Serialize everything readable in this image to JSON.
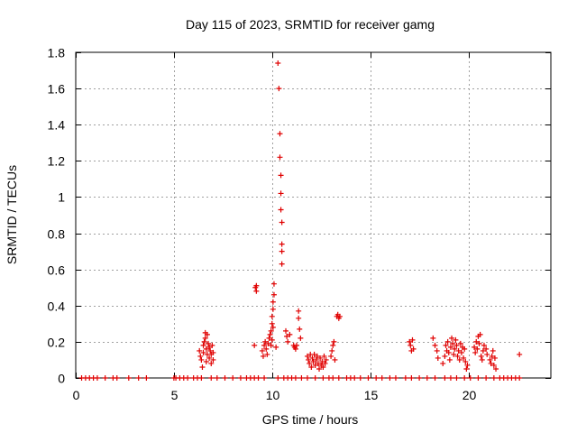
{
  "chart_data": {
    "type": "scatter",
    "title": "Day 115 of 2023, SRMTID for receiver gamg",
    "xlabel": "GPS time / hours",
    "ylabel": "SRMTID / TECUs",
    "xlim": [
      0,
      24.2
    ],
    "ylim": [
      0,
      1.8
    ],
    "grid": true,
    "marker": "+",
    "color": "#e00000",
    "x_ticks": [
      0,
      5,
      10,
      15,
      20
    ],
    "y_ticks": [
      0,
      0.2,
      0.4,
      0.6,
      0.8,
      1,
      1.2,
      1.4,
      1.6,
      1.8
    ],
    "x_tick_labels": [
      "0",
      "5",
      "10",
      "15",
      "20"
    ],
    "y_tick_labels": [
      "0",
      "0.2",
      "0.4",
      "0.6",
      "0.8",
      "1",
      "1.2",
      "1.4",
      "1.6",
      "1.8"
    ],
    "series": [
      {
        "name": "SRMTID",
        "points": [
          [
            0.3,
            0
          ],
          [
            0.5,
            0
          ],
          [
            0.7,
            0
          ],
          [
            0.9,
            0
          ],
          [
            1.1,
            0
          ],
          [
            1.5,
            0
          ],
          [
            1.9,
            0
          ],
          [
            2.1,
            0
          ],
          [
            2.7,
            0
          ],
          [
            3.2,
            0
          ],
          [
            3.6,
            0
          ],
          [
            5.0,
            0
          ],
          [
            5.1,
            0
          ],
          [
            5.3,
            0
          ],
          [
            5.5,
            0
          ],
          [
            5.7,
            0
          ],
          [
            6.0,
            0
          ],
          [
            6.2,
            0
          ],
          [
            6.4,
            0
          ],
          [
            6.9,
            0
          ],
          [
            7.2,
            0
          ],
          [
            7.6,
            0
          ],
          [
            8.0,
            0
          ],
          [
            8.4,
            0
          ],
          [
            8.7,
            0
          ],
          [
            8.9,
            0
          ],
          [
            9.1,
            0
          ],
          [
            9.3,
            0
          ],
          [
            9.6,
            0
          ],
          [
            10.3,
            0
          ],
          [
            10.6,
            0
          ],
          [
            10.8,
            0
          ],
          [
            11.0,
            0
          ],
          [
            11.2,
            0
          ],
          [
            11.5,
            0
          ],
          [
            11.8,
            0
          ],
          [
            12.2,
            0
          ],
          [
            12.6,
            0
          ],
          [
            12.9,
            0
          ],
          [
            13.1,
            0
          ],
          [
            13.4,
            0
          ],
          [
            13.8,
            0
          ],
          [
            14.0,
            0
          ],
          [
            14.2,
            0
          ],
          [
            14.5,
            0
          ],
          [
            14.9,
            0
          ],
          [
            15.3,
            0
          ],
          [
            15.6,
            0
          ],
          [
            16.0,
            0
          ],
          [
            16.3,
            0
          ],
          [
            16.8,
            0
          ],
          [
            17.1,
            0
          ],
          [
            17.5,
            0
          ],
          [
            17.9,
            0
          ],
          [
            18.3,
            0
          ],
          [
            18.8,
            0
          ],
          [
            19.1,
            0
          ],
          [
            19.4,
            0
          ],
          [
            19.8,
            0
          ],
          [
            20.1,
            0
          ],
          [
            20.5,
            0
          ],
          [
            20.9,
            0
          ],
          [
            21.3,
            0
          ],
          [
            21.6,
            0
          ],
          [
            21.8,
            0
          ],
          [
            22.0,
            0
          ],
          [
            22.2,
            0
          ],
          [
            22.4,
            0
          ],
          [
            22.6,
            0
          ],
          [
            6.3,
            0.15
          ],
          [
            6.35,
            0.12
          ],
          [
            6.4,
            0.1
          ],
          [
            6.45,
            0.06
          ],
          [
            6.5,
            0.18
          ],
          [
            6.5,
            0.14
          ],
          [
            6.55,
            0.2
          ],
          [
            6.6,
            0.25
          ],
          [
            6.6,
            0.22
          ],
          [
            6.65,
            0.16
          ],
          [
            6.65,
            0.09
          ],
          [
            6.7,
            0.24
          ],
          [
            6.7,
            0.13
          ],
          [
            6.75,
            0.19
          ],
          [
            6.8,
            0.11
          ],
          [
            6.8,
            0.17
          ],
          [
            6.85,
            0.15
          ],
          [
            6.9,
            0.08
          ],
          [
            6.9,
            0.13
          ],
          [
            6.95,
            0.18
          ],
          [
            7.0,
            0.1
          ],
          [
            7.0,
            0.14
          ],
          [
            9.1,
            0.18
          ],
          [
            9.15,
            0.5
          ],
          [
            9.2,
            0.48
          ],
          [
            9.2,
            0.51
          ],
          [
            9.5,
            0.15
          ],
          [
            9.55,
            0.12
          ],
          [
            9.6,
            0.18
          ],
          [
            9.65,
            0.2
          ],
          [
            9.7,
            0.16
          ],
          [
            9.75,
            0.13
          ],
          [
            9.8,
            0.19
          ],
          [
            9.85,
            0.22
          ],
          [
            9.9,
            0.24
          ],
          [
            9.95,
            0.26
          ],
          [
            10.0,
            0.3
          ],
          [
            10.0,
            0.34
          ],
          [
            10.05,
            0.38
          ],
          [
            10.05,
            0.42
          ],
          [
            10.1,
            0.46
          ],
          [
            10.1,
            0.52
          ],
          [
            10.05,
            0.28
          ],
          [
            10.0,
            0.21
          ],
          [
            9.95,
            0.18
          ],
          [
            10.2,
            0.17
          ],
          [
            10.3,
            1.74
          ],
          [
            10.35,
            1.6
          ],
          [
            10.4,
            1.35
          ],
          [
            10.4,
            1.22
          ],
          [
            10.45,
            1.12
          ],
          [
            10.45,
            1.02
          ],
          [
            10.45,
            0.93
          ],
          [
            10.5,
            0.86
          ],
          [
            10.5,
            0.74
          ],
          [
            10.5,
            0.7
          ],
          [
            10.5,
            0.63
          ],
          [
            10.7,
            0.26
          ],
          [
            10.75,
            0.23
          ],
          [
            10.8,
            0.2
          ],
          [
            10.9,
            0.24
          ],
          [
            11.1,
            0.18
          ],
          [
            11.15,
            0.17
          ],
          [
            11.2,
            0.16
          ],
          [
            11.25,
            0.18
          ],
          [
            11.35,
            0.37
          ],
          [
            11.35,
            0.33
          ],
          [
            11.4,
            0.27
          ],
          [
            11.45,
            0.22
          ],
          [
            11.8,
            0.12
          ],
          [
            11.85,
            0.1
          ],
          [
            11.9,
            0.08
          ],
          [
            11.95,
            0.13
          ],
          [
            12.0,
            0.06
          ],
          [
            12.05,
            0.11
          ],
          [
            12.1,
            0.09
          ],
          [
            12.15,
            0.13
          ],
          [
            12.2,
            0.07
          ],
          [
            12.25,
            0.1
          ],
          [
            12.3,
            0.12
          ],
          [
            12.35,
            0.08
          ],
          [
            12.4,
            0.05
          ],
          [
            12.45,
            0.11
          ],
          [
            12.5,
            0.07
          ],
          [
            12.55,
            0.09
          ],
          [
            12.6,
            0.06
          ],
          [
            12.65,
            0.12
          ],
          [
            12.7,
            0.08
          ],
          [
            12.75,
            0.1
          ],
          [
            13.0,
            0.12
          ],
          [
            13.05,
            0.15
          ],
          [
            13.1,
            0.18
          ],
          [
            13.15,
            0.2
          ],
          [
            13.2,
            0.1
          ],
          [
            13.3,
            0.34
          ],
          [
            13.35,
            0.35
          ],
          [
            13.4,
            0.33
          ],
          [
            13.45,
            0.34
          ],
          [
            17.0,
            0.2
          ],
          [
            17.05,
            0.18
          ],
          [
            17.1,
            0.15
          ],
          [
            17.15,
            0.21
          ],
          [
            17.2,
            0.16
          ],
          [
            18.2,
            0.22
          ],
          [
            18.3,
            0.18
          ],
          [
            18.4,
            0.15
          ],
          [
            18.45,
            0.11
          ],
          [
            18.7,
            0.08
          ],
          [
            18.8,
            0.12
          ],
          [
            18.85,
            0.18
          ],
          [
            18.9,
            0.15
          ],
          [
            18.95,
            0.2
          ],
          [
            19.0,
            0.14
          ],
          [
            19.05,
            0.1
          ],
          [
            19.1,
            0.17
          ],
          [
            19.15,
            0.22
          ],
          [
            19.2,
            0.19
          ],
          [
            19.25,
            0.13
          ],
          [
            19.3,
            0.16
          ],
          [
            19.35,
            0.21
          ],
          [
            19.4,
            0.18
          ],
          [
            19.45,
            0.12
          ],
          [
            19.5,
            0.15
          ],
          [
            19.55,
            0.1
          ],
          [
            19.6,
            0.19
          ],
          [
            19.65,
            0.14
          ],
          [
            19.7,
            0.17
          ],
          [
            19.75,
            0.11
          ],
          [
            19.8,
            0.16
          ],
          [
            19.85,
            0.09
          ],
          [
            19.9,
            0.05
          ],
          [
            19.95,
            0.07
          ],
          [
            20.3,
            0.17
          ],
          [
            20.35,
            0.14
          ],
          [
            20.4,
            0.2
          ],
          [
            20.45,
            0.16
          ],
          [
            20.5,
            0.23
          ],
          [
            20.55,
            0.19
          ],
          [
            20.6,
            0.24
          ],
          [
            20.65,
            0.12
          ],
          [
            20.7,
            0.1
          ],
          [
            20.75,
            0.15
          ],
          [
            20.8,
            0.18
          ],
          [
            20.9,
            0.16
          ],
          [
            20.95,
            0.13
          ],
          [
            21.1,
            0.1
          ],
          [
            21.15,
            0.08
          ],
          [
            21.2,
            0.12
          ],
          [
            21.25,
            0.15
          ],
          [
            21.3,
            0.07
          ],
          [
            21.35,
            0.11
          ],
          [
            21.4,
            0.05
          ],
          [
            22.6,
            0.13
          ]
        ]
      }
    ]
  }
}
